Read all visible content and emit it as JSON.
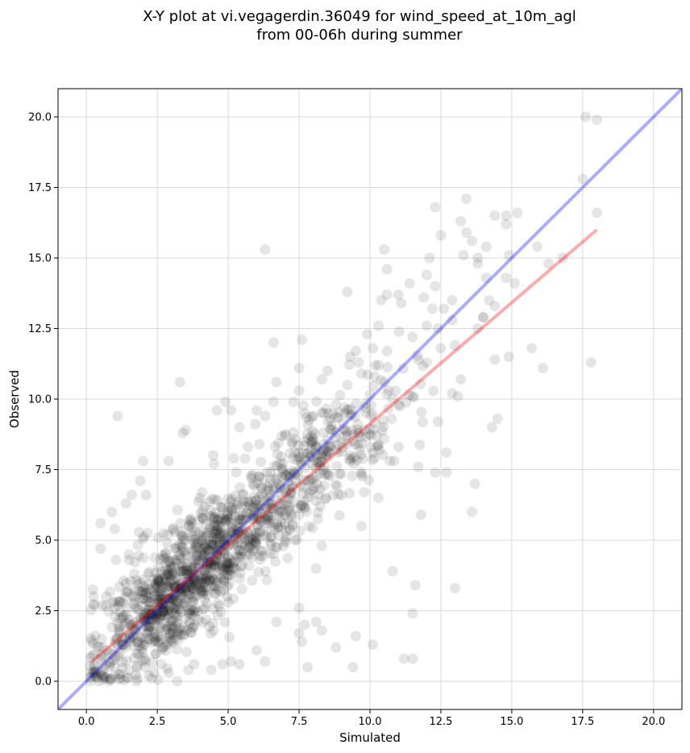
{
  "chart_data": {
    "type": "scatter",
    "title_lines": [
      "X-Y plot at vi.vegagerdin.36049 for wind_speed_at_10m_agl",
      "from 00-06h during summer"
    ],
    "xlabel": "Simulated",
    "ylabel": "Observed",
    "xlim": [
      -1.0,
      21.0
    ],
    "ylim": [
      -1.0,
      21.0
    ],
    "xticks": [
      0.0,
      2.5,
      5.0,
      7.5,
      10.0,
      12.5,
      15.0,
      17.5,
      20.0
    ],
    "yticks": [
      0.0,
      2.5,
      5.0,
      7.5,
      10.0,
      12.5,
      15.0,
      17.5,
      20.0
    ],
    "xtick_labels": [
      "0.0",
      "2.5",
      "5.0",
      "7.5",
      "10.0",
      "12.5",
      "15.0",
      "17.5",
      "20.0"
    ],
    "ytick_labels": [
      "0.0",
      "2.5",
      "5.0",
      "7.5",
      "10.0",
      "12.5",
      "15.0",
      "17.5",
      "20.0"
    ],
    "grid": true,
    "colors": {
      "points": "#000000",
      "identity_line": "#0000ff",
      "fit_line": "#ff0000",
      "grid": "#d9d9d9"
    },
    "identity_line": {
      "x": [
        -1.0,
        21.0
      ],
      "y": [
        -1.0,
        21.0
      ]
    },
    "fit_line": {
      "x": [
        0.2,
        18.0
      ],
      "y": [
        0.7,
        16.0
      ]
    },
    "series": [
      {
        "points": [
          [
            17.6,
            20.0
          ],
          [
            18.0,
            19.9
          ],
          [
            17.5,
            17.8
          ],
          [
            13.4,
            17.1
          ],
          [
            12.3,
            16.8
          ],
          [
            13.2,
            16.3
          ],
          [
            14.4,
            16.5
          ],
          [
            15.2,
            16.6
          ],
          [
            18.0,
            16.6
          ],
          [
            14.8,
            16.5
          ],
          [
            12.5,
            15.8
          ],
          [
            13.4,
            15.9
          ],
          [
            13.6,
            15.6
          ],
          [
            14.1,
            15.4
          ],
          [
            14.8,
            16.2
          ],
          [
            10.5,
            15.3
          ],
          [
            6.3,
            15.3
          ],
          [
            15.9,
            15.4
          ],
          [
            13.8,
            15.0
          ],
          [
            13.3,
            15.1
          ],
          [
            14.9,
            15.1
          ],
          [
            12.1,
            15.0
          ],
          [
            13.8,
            14.8
          ],
          [
            16.3,
            14.8
          ],
          [
            16.8,
            15.0
          ],
          [
            10.6,
            14.6
          ],
          [
            12.0,
            14.4
          ],
          [
            14.1,
            14.3
          ],
          [
            11.4,
            14.1
          ],
          [
            12.3,
            14.0
          ],
          [
            15.1,
            14.1
          ],
          [
            14.8,
            14.3
          ],
          [
            11.9,
            13.6
          ],
          [
            10.6,
            13.7
          ],
          [
            11.0,
            13.7
          ],
          [
            10.4,
            13.5
          ],
          [
            11.1,
            13.4
          ],
          [
            12.9,
            13.5
          ],
          [
            14.2,
            13.5
          ],
          [
            9.2,
            13.8
          ],
          [
            14.4,
            13.3
          ],
          [
            12.2,
            13.2
          ],
          [
            12.6,
            13.2
          ],
          [
            14.0,
            12.9
          ],
          [
            12.9,
            12.8
          ],
          [
            12.0,
            12.6
          ],
          [
            10.3,
            12.6
          ],
          [
            12.4,
            12.5
          ],
          [
            13.8,
            12.5
          ],
          [
            11.5,
            12.2
          ],
          [
            7.6,
            12.1
          ],
          [
            9.9,
            12.3
          ],
          [
            6.6,
            12.0
          ],
          [
            13.0,
            11.9
          ],
          [
            12.5,
            11.8
          ],
          [
            10.1,
            11.8
          ],
          [
            15.7,
            11.8
          ],
          [
            9.5,
            11.7
          ],
          [
            10.6,
            11.7
          ],
          [
            11.7,
            11.4
          ],
          [
            9.3,
            11.5
          ],
          [
            14.4,
            11.4
          ],
          [
            14.9,
            11.5
          ],
          [
            12.0,
            11.3
          ],
          [
            17.8,
            11.3
          ],
          [
            9.6,
            11.3
          ],
          [
            10.3,
            11.2
          ],
          [
            16.1,
            11.1
          ],
          [
            7.5,
            11.1
          ],
          [
            8.5,
            11.0
          ],
          [
            9.7,
            10.9
          ],
          [
            10.5,
            10.6
          ],
          [
            8.3,
            10.7
          ],
          [
            6.7,
            10.6
          ],
          [
            3.3,
            10.6
          ],
          [
            13.2,
            10.7
          ],
          [
            7.5,
            10.3
          ],
          [
            9.2,
            10.5
          ],
          [
            12.9,
            10.2
          ],
          [
            13.1,
            10.1
          ],
          [
            11.5,
            10.1
          ],
          [
            4.9,
            9.9
          ],
          [
            6.6,
            9.9
          ],
          [
            10.8,
            10.0
          ],
          [
            7.3,
            9.9
          ],
          [
            8.8,
            9.8
          ],
          [
            11.0,
            9.8
          ],
          [
            4.6,
            9.6
          ],
          [
            5.1,
            9.6
          ],
          [
            9.1,
            9.7
          ],
          [
            6.0,
            9.6
          ],
          [
            7.7,
            9.5
          ],
          [
            8.0,
            9.4
          ],
          [
            1.1,
            9.4
          ],
          [
            6.3,
            9.4
          ],
          [
            14.5,
            9.3
          ],
          [
            12.4,
            9.2
          ],
          [
            14.3,
            9.0
          ],
          [
            3.5,
            8.9
          ],
          [
            5.4,
            9.0
          ],
          [
            8.7,
            8.9
          ],
          [
            9.8,
            8.9
          ],
          [
            3.4,
            8.8
          ],
          [
            7.0,
            8.7
          ],
          [
            10.5,
            8.6
          ],
          [
            9.4,
            8.5
          ],
          [
            6.1,
            8.4
          ],
          [
            11.0,
            8.3
          ],
          [
            5.7,
            8.3
          ],
          [
            8.8,
            8.2
          ],
          [
            10.1,
            8.1
          ],
          [
            7.9,
            8.0
          ],
          [
            12.7,
            8.1
          ],
          [
            5.2,
            7.9
          ],
          [
            10.7,
            7.8
          ],
          [
            2.0,
            7.8
          ],
          [
            2.9,
            7.8
          ],
          [
            4.5,
            7.7
          ],
          [
            9.3,
            7.8
          ],
          [
            11.7,
            7.6
          ],
          [
            12.3,
            7.4
          ],
          [
            12.7,
            7.4
          ],
          [
            6.9,
            7.5
          ],
          [
            6.2,
            7.2
          ],
          [
            1.9,
            7.1
          ],
          [
            13.7,
            7.0
          ],
          [
            9.8,
            6.7
          ],
          [
            8.7,
            6.6
          ],
          [
            10.3,
            6.5
          ],
          [
            1.6,
            6.6
          ],
          [
            2.1,
            6.6
          ],
          [
            11.8,
            5.9
          ],
          [
            13.6,
            6.0
          ],
          [
            0.9,
            6.0
          ],
          [
            1.4,
            6.3
          ],
          [
            9.7,
            5.5
          ],
          [
            7.0,
            5.6
          ],
          [
            0.5,
            5.6
          ],
          [
            1.0,
            5.4
          ],
          [
            6.5,
            5.1
          ],
          [
            8.3,
            4.8
          ],
          [
            0.5,
            4.7
          ],
          [
            4.8,
            4.6
          ],
          [
            1.5,
            4.3
          ],
          [
            10.8,
            3.9
          ],
          [
            8.1,
            4.0
          ],
          [
            2.0,
            3.6
          ],
          [
            11.6,
            3.4
          ],
          [
            13.0,
            3.3
          ],
          [
            4.1,
            3.2
          ],
          [
            0.7,
            3.0
          ],
          [
            5.0,
            2.8
          ],
          [
            7.5,
            2.6
          ],
          [
            0.3,
            2.7
          ],
          [
            11.5,
            2.4
          ],
          [
            6.7,
            2.1
          ],
          [
            7.7,
            2.0
          ],
          [
            8.1,
            2.1
          ],
          [
            7.5,
            1.7
          ],
          [
            8.3,
            1.8
          ],
          [
            9.5,
            1.6
          ],
          [
            7.6,
            1.4
          ],
          [
            2.7,
            1.2
          ],
          [
            8.8,
            1.2
          ],
          [
            10.1,
            1.3
          ],
          [
            0.8,
            1.0
          ],
          [
            6.0,
            1.1
          ],
          [
            5.1,
            0.7
          ],
          [
            0.2,
            0.9
          ],
          [
            11.2,
            0.8
          ],
          [
            11.5,
            0.8
          ],
          [
            7.8,
            0.5
          ],
          [
            9.4,
            0.5
          ],
          [
            0.5,
            0.3
          ],
          [
            1.2,
            0.1
          ],
          [
            3.2,
            0.0
          ],
          [
            0.8,
            0.0
          ],
          [
            1.8,
            0.1
          ],
          [
            4.4,
            0.4
          ],
          [
            2.3,
            0.1
          ],
          [
            3.8,
            0.6
          ],
          [
            4.8,
            0.6
          ],
          [
            1.5,
            0.4
          ],
          [
            2.9,
            0.3
          ],
          [
            3.6,
            0.4
          ],
          [
            5.4,
            0.6
          ],
          [
            6.3,
            0.7
          ],
          [
            2.2,
            0.2
          ],
          [
            1.0,
            0.2
          ],
          [
            0.3,
            0.6
          ]
        ],
        "cloud_clusters": [
          {
            "center": [
              3.0,
              3.0
            ],
            "spread": [
              1.5,
              1.5
            ],
            "count": 700
          },
          {
            "center": [
              5.5,
              5.5
            ],
            "spread": [
              1.6,
              1.6
            ],
            "count": 450
          },
          {
            "center": [
              8.5,
              8.0
            ],
            "spread": [
              1.4,
              1.5
            ],
            "count": 220
          }
        ]
      }
    ]
  }
}
